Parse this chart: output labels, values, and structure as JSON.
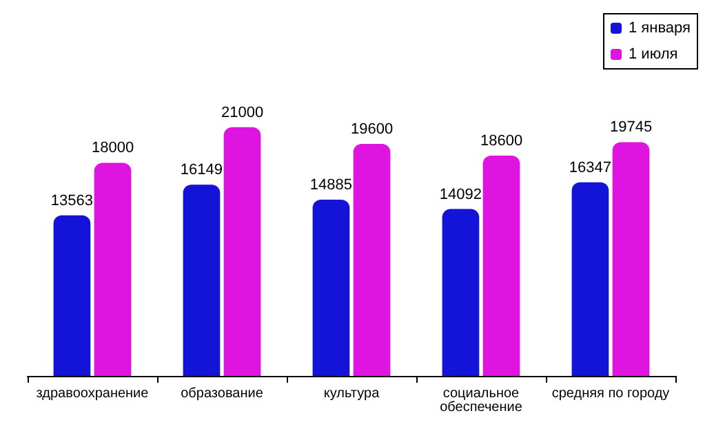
{
  "chart_data": {
    "type": "bar",
    "categories": [
      "здравоохранение",
      "образование",
      "культура",
      "социальное обеспечение",
      "средняя по городу"
    ],
    "series": [
      {
        "name": "1 января",
        "color": "#1414d8",
        "values": [
          13563,
          16149,
          14885,
          14092,
          16347
        ]
      },
      {
        "name": "1 июля",
        "color": "#e014e0",
        "values": [
          18000,
          21000,
          19600,
          18600,
          19745
        ]
      }
    ],
    "data_labels": true,
    "legend": "top right",
    "tick_labels": "x"
  }
}
